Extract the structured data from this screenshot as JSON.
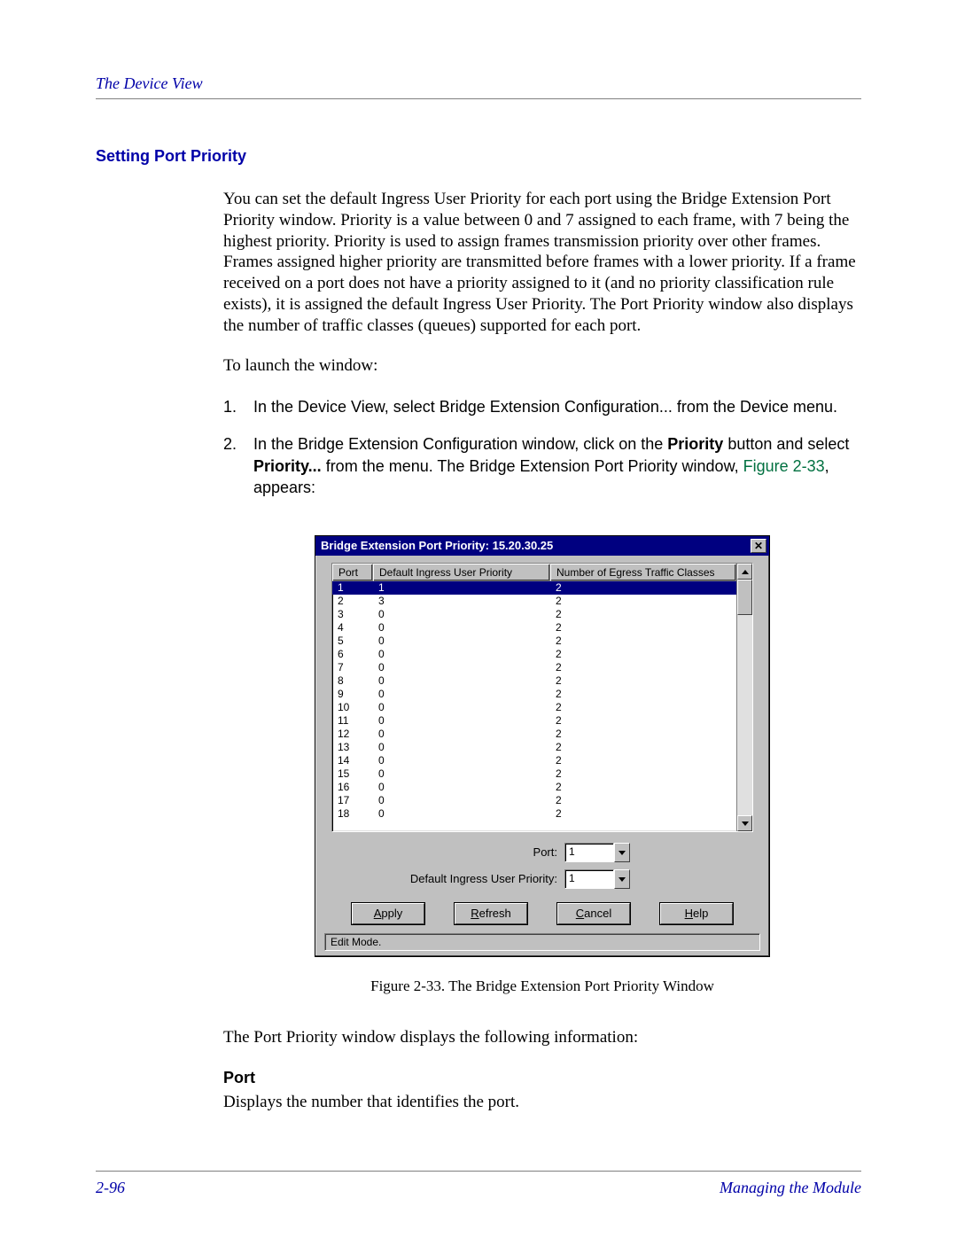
{
  "header": {
    "running_head": "The Device View"
  },
  "section": {
    "title": "Setting Port Priority"
  },
  "para1": "You can set the default Ingress User Priority for each port using the Bridge Extension Port Priority window. Priority is a value between 0 and 7 assigned to each frame, with 7 being the highest priority. Priority is used to assign frames transmission priority over other frames. Frames assigned higher priority are transmitted before frames with a lower priority. If a frame received on a port does not have a priority assigned to it (and no priority classification rule exists), it is assigned the default Ingress User Priority. The Port Priority window also displays the number of traffic classes (queues) supported for each port.",
  "para2": "To launch the window:",
  "steps": {
    "s1": {
      "num": "1.",
      "text": "In the Device View, select Bridge Extension Configuration... from the Device menu."
    },
    "s2": {
      "num": "2.",
      "pre": "In the Bridge Extension Configuration window, click on the ",
      "bold1": "Priority",
      "mid": " button and select ",
      "bold2": "Priority...",
      "aft": " from the menu. The Bridge Extension Port Priority window, ",
      "figref": "Figure 2-33",
      "tail": ", appears:"
    }
  },
  "dialog": {
    "title": "Bridge Extension Port Priority: 15.20.30.25",
    "close_glyph": "✕",
    "columns": {
      "port": "Port",
      "prio": "Default Ingress User Priority",
      "classes": "Number of Egress Traffic Classes"
    },
    "rows": [
      {
        "port": "1",
        "prio": "1",
        "classes": "2",
        "selected": true
      },
      {
        "port": "2",
        "prio": "3",
        "classes": "2"
      },
      {
        "port": "3",
        "prio": "0",
        "classes": "2"
      },
      {
        "port": "4",
        "prio": "0",
        "classes": "2"
      },
      {
        "port": "5",
        "prio": "0",
        "classes": "2"
      },
      {
        "port": "6",
        "prio": "0",
        "classes": "2"
      },
      {
        "port": "7",
        "prio": "0",
        "classes": "2"
      },
      {
        "port": "8",
        "prio": "0",
        "classes": "2"
      },
      {
        "port": "9",
        "prio": "0",
        "classes": "2"
      },
      {
        "port": "10",
        "prio": "0",
        "classes": "2"
      },
      {
        "port": "11",
        "prio": "0",
        "classes": "2"
      },
      {
        "port": "12",
        "prio": "0",
        "classes": "2"
      },
      {
        "port": "13",
        "prio": "0",
        "classes": "2"
      },
      {
        "port": "14",
        "prio": "0",
        "classes": "2"
      },
      {
        "port": "15",
        "prio": "0",
        "classes": "2"
      },
      {
        "port": "16",
        "prio": "0",
        "classes": "2"
      },
      {
        "port": "17",
        "prio": "0",
        "classes": "2"
      },
      {
        "port": "18",
        "prio": "0",
        "classes": "2"
      }
    ],
    "form": {
      "port_label": "Port:",
      "port_value": "1",
      "prio_label": "Default Ingress User Priority:",
      "prio_value": "1"
    },
    "buttons": {
      "apply": {
        "u": "A",
        "rest": "pply"
      },
      "refresh": {
        "u": "R",
        "rest": "efresh"
      },
      "cancel": {
        "u": "C",
        "rest": "ancel"
      },
      "help": {
        "u": "H",
        "rest": "elp"
      }
    },
    "status": "Edit Mode."
  },
  "caption": "Figure 2-33. The Bridge Extension Port Priority Window",
  "para3": "The Port Priority window displays the following information:",
  "sub": {
    "title": "Port",
    "text": "Displays the number that identifies the port."
  },
  "footer": {
    "page": "2-96",
    "chapter": "Managing the Module"
  }
}
